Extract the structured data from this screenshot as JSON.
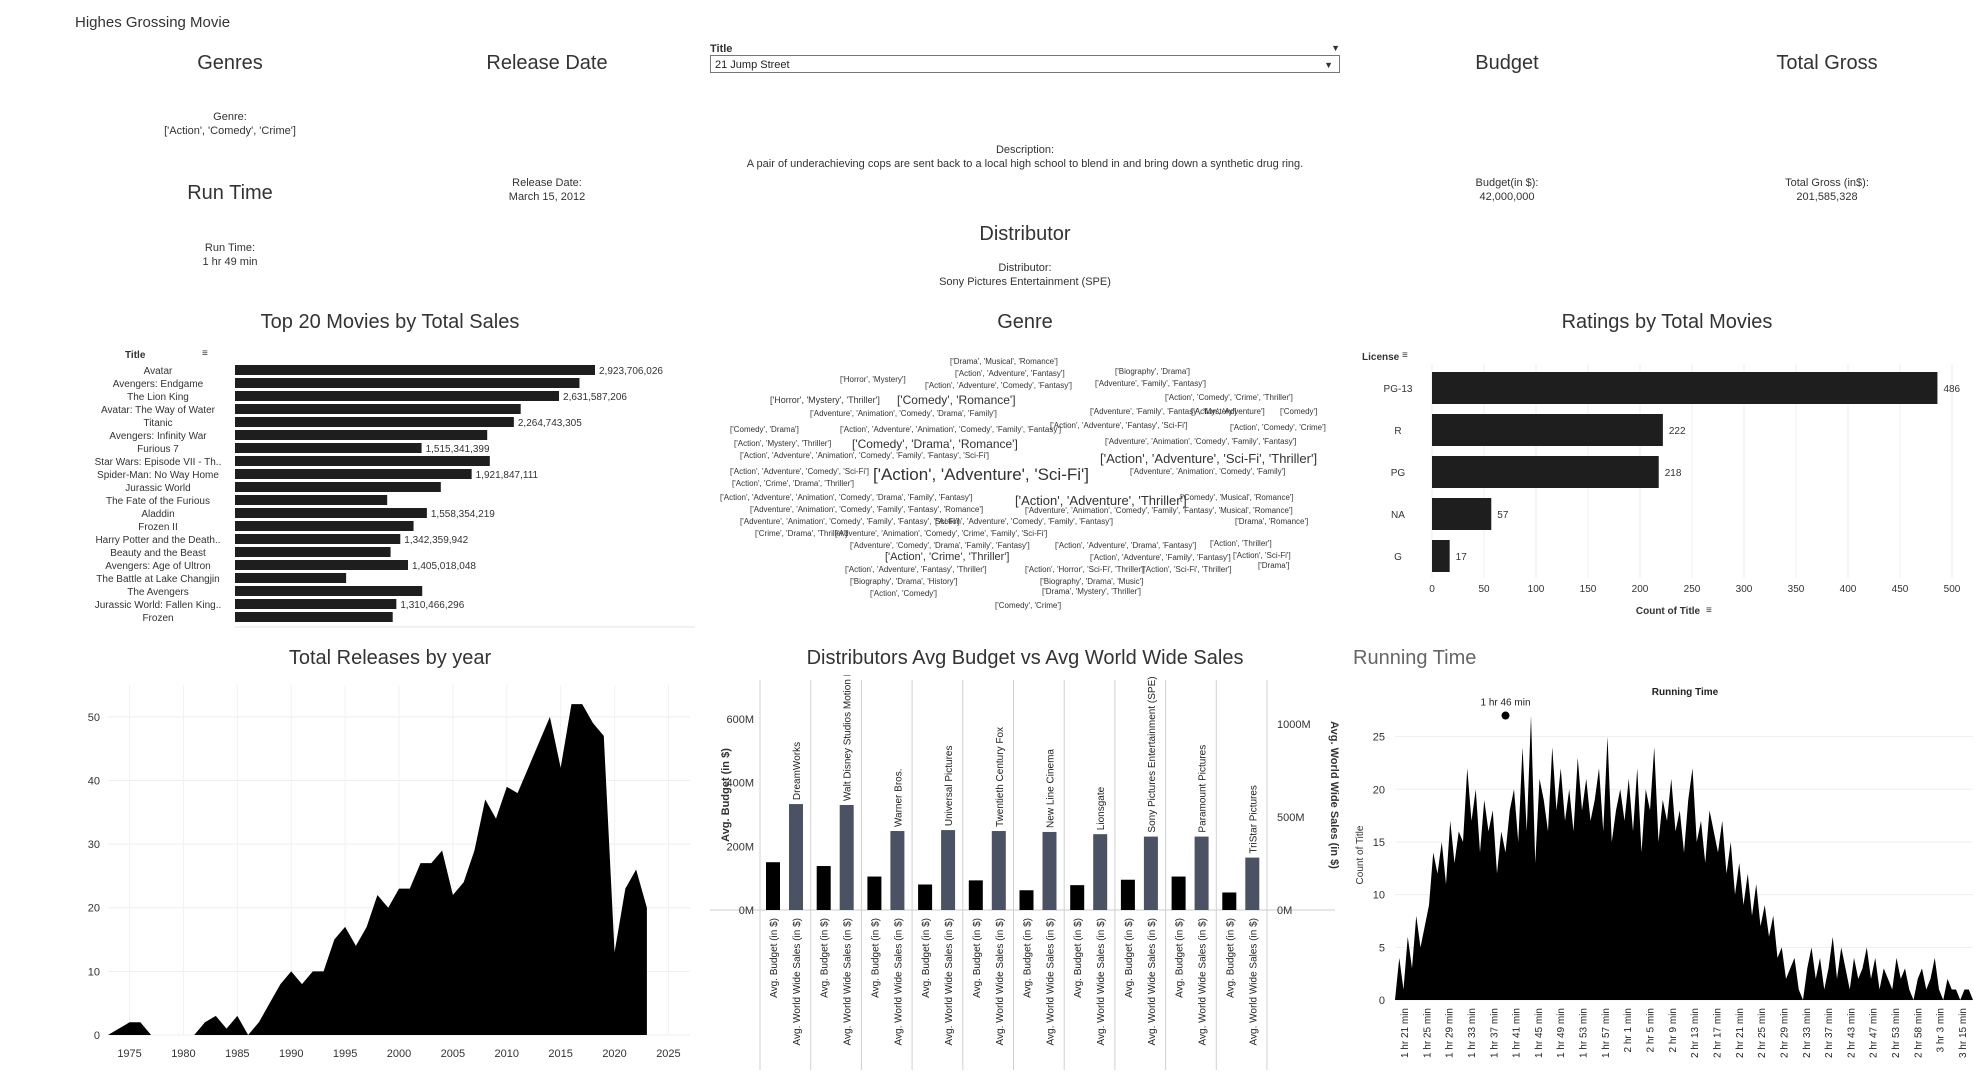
{
  "dashboard_title": "Highes Grossing Movie",
  "kpis": {
    "genres": {
      "title": "Genres",
      "label": "Genre:",
      "value": "['Action', 'Comedy', 'Crime']"
    },
    "release_date": {
      "title": "Release Date",
      "label": "Release Date:",
      "value": "March 15, 2012"
    },
    "run_time": {
      "title": "Run Time",
      "label": "Run Time:",
      "value": "1 hr 49 min"
    },
    "description": {
      "label": "Description:",
      "value": "A pair of underachieving cops are sent back to a local high school to blend in and bring down a synthetic drug ring."
    },
    "distributor": {
      "title": "Distributor",
      "label": "Distributor:",
      "value": "Sony Pictures Entertainment (SPE)"
    },
    "budget": {
      "title": "Budget",
      "label": "Budget(in $):",
      "value": "42,000,000"
    },
    "total_gross": {
      "title": "Total Gross",
      "label": "Total Gross (in$):",
      "value": "201,585,328"
    }
  },
  "title_filter": {
    "label": "Title",
    "selected": "21 Jump Street"
  },
  "sections": {
    "top20": "Top 20 Movies by Total Sales",
    "genre": "Genre",
    "ratings": "Ratings by Total Movies",
    "releases": "Total Releases by year",
    "distributors": "Distributors Avg Budget vs Avg World Wide Sales",
    "running": "Running Time"
  },
  "chart_data": [
    {
      "id": "top20",
      "type": "bar",
      "orientation": "horizontal",
      "column_header": "Title",
      "bar_color": "#1e1e1e",
      "categories": [
        "Avatar",
        "Avengers: Endgame",
        "The Lion King",
        "Avatar: The Way of Water",
        "Titanic",
        "Avengers: Infinity War",
        "Furious 7",
        "Star Wars: Episode VII - Th..",
        "Spider-Man: No Way Home",
        "Jurassic World",
        "The Fate of the Furious",
        "Aladdin",
        "Frozen II",
        "Harry Potter and the Death..",
        "Beauty and the Beast",
        "Avengers: Age of Ultron",
        "The Battle at Lake Changjin",
        "The Avengers",
        "Jurassic World: Fallen King..",
        "Frozen"
      ],
      "values": [
        2923706026,
        2797501328,
        2631587206,
        2320250281,
        2264743305,
        2048359754,
        1515341399,
        2069521700,
        1921847111,
        1671537444,
        1236005118,
        1558354219,
        1450026933,
        1342359942,
        1263521126,
        1405018048,
        902548476,
        1520538536,
        1310466296,
        1280802282
      ],
      "labels": [
        "2,923,706,026",
        "",
        "2,631,587,206",
        "",
        "2,264,743,305",
        "",
        "1,515,341,399",
        "",
        "1,921,847,111",
        "",
        "",
        "1,558,354,219",
        "",
        "1,342,359,942",
        "",
        "1,405,018,048",
        "",
        "",
        "1,310,466,296",
        ""
      ]
    },
    {
      "id": "genre",
      "type": "wordcloud",
      "words": [
        {
          "text": "['Drama', 'Musical', 'Romance']",
          "size": 8
        },
        {
          "text": "['Action', 'Adventure', 'Fantasy']",
          "size": 8
        },
        {
          "text": "['Biography', 'Drama']",
          "size": 8
        },
        {
          "text": "['Horror', 'Mystery']",
          "size": 8
        },
        {
          "text": "['Action', 'Adventure', 'Comedy', 'Fantasy']",
          "size": 8
        },
        {
          "text": "['Adventure', 'Family', 'Fantasy']",
          "size": 8
        },
        {
          "text": "['Action', 'Comedy', 'Crime', 'Thriller']",
          "size": 8
        },
        {
          "text": "['Horror', 'Mystery', 'Thriller']",
          "size": 9
        },
        {
          "text": "['Comedy', 'Romance']",
          "size": 12
        },
        {
          "text": "['Adventure', 'Family', 'Fantasy', 'Mystery']",
          "size": 8
        },
        {
          "text": "['Action', 'Adventure']",
          "size": 8
        },
        {
          "text": "['Comedy']",
          "size": 8
        },
        {
          "text": "['Adventure', 'Animation', 'Comedy', 'Drama', 'Family']",
          "size": 8
        },
        {
          "text": "['Comedy', 'Drama']",
          "size": 8
        },
        {
          "text": "['Action', 'Adventure', 'Animation', 'Comedy', 'Family', 'Fantasy']",
          "size": 8
        },
        {
          "text": "['Action', 'Adventure', 'Fantasy', 'Sci-Fi']",
          "size": 8
        },
        {
          "text": "['Action', 'Comedy', 'Crime']",
          "size": 8
        },
        {
          "text": "['Action', 'Mystery', 'Thriller']",
          "size": 8
        },
        {
          "text": "['Comedy', 'Drama', 'Romance']",
          "size": 12
        },
        {
          "text": "['Adventure', 'Animation', 'Comedy', 'Family', 'Fantasy']",
          "size": 8
        },
        {
          "text": "['Action', 'Adventure', 'Animation', 'Comedy', 'Family', 'Fantasy', 'Sci-Fi']",
          "size": 8
        },
        {
          "text": "['Action', 'Adventure', 'Sci-Fi', 'Thriller']",
          "size": 13
        },
        {
          "text": "['Action', 'Adventure', 'Comedy', 'Sci-Fi']",
          "size": 8
        },
        {
          "text": "['Action', 'Adventure', 'Sci-Fi']",
          "size": 17
        },
        {
          "text": "['Adventure', 'Animation', 'Comedy', 'Family']",
          "size": 8
        },
        {
          "text": "['Action', 'Crime', 'Drama', 'Thriller']",
          "size": 8
        },
        {
          "text": "['Action', 'Adventure', 'Animation', 'Comedy', 'Drama', 'Family', 'Fantasy']",
          "size": 8
        },
        {
          "text": "['Action', 'Adventure', 'Thriller']",
          "size": 13
        },
        {
          "text": "['Comedy', 'Musical', 'Romance']",
          "size": 8
        },
        {
          "text": "['Adventure', 'Animation', 'Comedy', 'Family', 'Fantasy', 'Romance']",
          "size": 8
        },
        {
          "text": "['Adventure', 'Animation', 'Comedy', 'Family', 'Fantasy', 'Musical', 'Romance']",
          "size": 8
        },
        {
          "text": "['Adventure', 'Animation', 'Comedy', 'Family', 'Fantasy', 'Sci-Fi']",
          "size": 8
        },
        {
          "text": "['Action', 'Adventure', 'Comedy', 'Family', 'Fantasy']",
          "size": 8
        },
        {
          "text": "['Drama', 'Romance']",
          "size": 8
        },
        {
          "text": "['Crime', 'Drama', 'Thriller']",
          "size": 8
        },
        {
          "text": "['Adventure', 'Animation', 'Comedy', 'Crime', 'Family', 'Sci-Fi']",
          "size": 8
        },
        {
          "text": "['Adventure', 'Comedy', 'Drama', 'Family', 'Fantasy']",
          "size": 8
        },
        {
          "text": "['Action', 'Adventure', 'Drama', 'Fantasy']",
          "size": 8
        },
        {
          "text": "['Action', 'Thriller']",
          "size": 8
        },
        {
          "text": "['Action', 'Crime', 'Thriller']",
          "size": 11
        },
        {
          "text": "['Action', 'Adventure', 'Family', 'Fantasy']",
          "size": 8
        },
        {
          "text": "['Action', 'Sci-Fi']",
          "size": 8
        },
        {
          "text": "['Drama']",
          "size": 8
        },
        {
          "text": "['Action', 'Adventure', 'Fantasy', 'Thriller']",
          "size": 8
        },
        {
          "text": "['Action', 'Horror', 'Sci-Fi', 'Thriller']",
          "size": 8
        },
        {
          "text": "['Action', 'Sci-Fi', 'Thriller']",
          "size": 8
        },
        {
          "text": "['Biography', 'Drama', 'History']",
          "size": 8
        },
        {
          "text": "['Biography', 'Drama', 'Music']",
          "size": 8
        },
        {
          "text": "['Action', 'Comedy']",
          "size": 8
        },
        {
          "text": "['Drama', 'Mystery', 'Thriller']",
          "size": 8
        },
        {
          "text": "['Comedy', 'Crime']",
          "size": 8
        }
      ]
    },
    {
      "id": "ratings",
      "type": "bar",
      "orientation": "horizontal",
      "column_header": "License",
      "xlabel": "Count of Title",
      "xlim": [
        0,
        500
      ],
      "xticks": [
        0,
        50,
        100,
        150,
        200,
        250,
        300,
        350,
        400,
        450,
        500
      ],
      "grid": true,
      "bar_color": "#1e1e1e",
      "categories": [
        "PG-13",
        "R",
        "PG",
        "NA",
        "G"
      ],
      "values": [
        486,
        222,
        218,
        57,
        17
      ]
    },
    {
      "id": "releases",
      "type": "area",
      "fill_color": "#000000",
      "grid": true,
      "ylim": [
        0,
        55
      ],
      "yticks": [
        0,
        10,
        20,
        30,
        40,
        50
      ],
      "xlim": [
        1973,
        2027
      ],
      "xticks": [
        1975,
        1980,
        1985,
        1990,
        1995,
        2000,
        2005,
        2010,
        2015,
        2020,
        2025
      ],
      "x": [
        1973,
        1974,
        1975,
        1976,
        1977,
        1978,
        1979,
        1980,
        1981,
        1982,
        1983,
        1984,
        1985,
        1986,
        1987,
        1988,
        1989,
        1990,
        1991,
        1992,
        1993,
        1994,
        1995,
        1996,
        1997,
        1998,
        1999,
        2000,
        2001,
        2002,
        2003,
        2004,
        2005,
        2006,
        2007,
        2008,
        2009,
        2010,
        2011,
        2012,
        2013,
        2014,
        2015,
        2016,
        2017,
        2018,
        2019,
        2020,
        2021,
        2022,
        2023
      ],
      "y": [
        0,
        1,
        2,
        2,
        0,
        0,
        0,
        0,
        0,
        2,
        3,
        1,
        3,
        0,
        2,
        5,
        8,
        10,
        8,
        10,
        10,
        15,
        17,
        14,
        17,
        22,
        20,
        23,
        23,
        27,
        27,
        29,
        22,
        24,
        29,
        37,
        34,
        39,
        38,
        42,
        46,
        50,
        42,
        52,
        52,
        49,
        47,
        13,
        23,
        26,
        20
      ]
    },
    {
      "id": "distributors",
      "type": "bar",
      "dual_axis": true,
      "left_axis": {
        "label": "Avg. Budget (in $)",
        "ticks": [
          "0M",
          "200M",
          "400M",
          "600M"
        ],
        "ylim": [
          0,
          700
        ]
      },
      "right_axis": {
        "label": "Avg. World Wide Sales (in $)",
        "ticks": [
          "0M",
          "500M",
          "1000M"
        ],
        "ylim": [
          0,
          1200
        ]
      },
      "categories": [
        "DreamWorks",
        "Walt Disney Studios Motion Pictures",
        "Warner Bros.",
        "Universal Pictures",
        "Twentieth Century Fox",
        "New Line Cinema",
        "Lionsgate",
        "Sony Pictures Entertainment (SPE)",
        "Paramount Pictures",
        "TriStar Pictures"
      ],
      "measure_labels": [
        "Avg. Budget (in $)",
        "Avg. World Wide Sales (in $)"
      ],
      "series": [
        {
          "name": "Avg. Budget (in $)",
          "color": "#000000",
          "values": [
            150,
            138,
            105,
            80,
            93,
            62,
            78,
            95,
            105,
            55
          ]
        },
        {
          "name": "Avg. World Wide Sales (in $)",
          "color": "#4a5263",
          "values": [
            570,
            565,
            425,
            430,
            425,
            420,
            408,
            395,
            395,
            282
          ]
        }
      ]
    },
    {
      "id": "running",
      "type": "area",
      "title": "Running Time",
      "ylabel": "Count of Title",
      "fill_color": "#000000",
      "grid": true,
      "ylim": [
        0,
        28
      ],
      "yticks": [
        0,
        5,
        10,
        15,
        20,
        25
      ],
      "annotation": {
        "label": "1 hr 46 min",
        "minute": 106,
        "value": 27
      },
      "tick_labels": [
        "1 hr 21 min",
        "1 hr 25 min",
        "1 hr 29 min",
        "1 hr 33 min",
        "1 hr 37 min",
        "1 hr 41 min",
        "1 hr 45 min",
        "1 hr 49 min",
        "1 hr 53 min",
        "1 hr 57 min",
        "2 hr 1 min",
        "2 hr 5 min",
        "2 hr 9 min",
        "2 hr 13 min",
        "2 hr 17 min",
        "2 hr 21 min",
        "2 hr 25 min",
        "2 hr 29 min",
        "2 hr 33 min",
        "2 hr 37 min",
        "2 hr 43 min",
        "2 hr 47 min",
        "2 hr 53 min",
        "2 hr 58 min",
        "3 hr 3 min",
        "3 hr 15 min"
      ],
      "x_start_minute": 80,
      "values": [
        0,
        4,
        1,
        6,
        3,
        8,
        5,
        7,
        9,
        14,
        12,
        15,
        11,
        17,
        13,
        16,
        15,
        22,
        17,
        20,
        14,
        19,
        16,
        18,
        12,
        16,
        14,
        18,
        20,
        15,
        24,
        16,
        27,
        13,
        21,
        19,
        16,
        24,
        18,
        22,
        17,
        20,
        16,
        23,
        18,
        21,
        17,
        19,
        22,
        16,
        25,
        15,
        18,
        20,
        17,
        21,
        16,
        22,
        14,
        20,
        18,
        24,
        15,
        19,
        17,
        21,
        16,
        18,
        14,
        19,
        22,
        15,
        17,
        13,
        18,
        16,
        14,
        17,
        12,
        15,
        10,
        13,
        9,
        12,
        8,
        11,
        7,
        9,
        6,
        8,
        4,
        5,
        2,
        3,
        4,
        1,
        0,
        3,
        5,
        2,
        4,
        1,
        3,
        6,
        2,
        5,
        3,
        1,
        4,
        2,
        3,
        5,
        2,
        4,
        1,
        3,
        2,
        1,
        4,
        2,
        3,
        1,
        0,
        2,
        3,
        1,
        2,
        4,
        1,
        0,
        2,
        1,
        1,
        0,
        1,
        1,
        0
      ]
    }
  ]
}
